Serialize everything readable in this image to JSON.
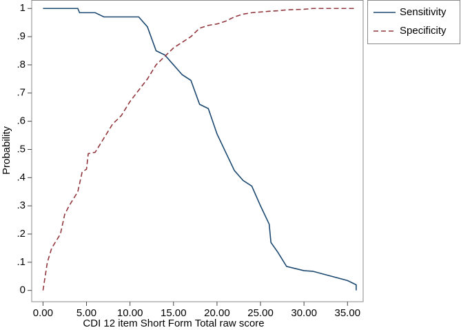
{
  "chart_data": {
    "type": "line",
    "xlabel": "CDI 12 item Short Form Total raw score",
    "ylabel": "Probability",
    "xlim": [
      -1.3,
      36.8
    ],
    "ylim": [
      -0.04,
      1.03
    ],
    "xticks": [
      {
        "value": 0,
        "label": "0.00"
      },
      {
        "value": 5,
        "label": "5.00"
      },
      {
        "value": 10,
        "label": "10.00"
      },
      {
        "value": 15,
        "label": "15.00"
      },
      {
        "value": 20,
        "label": "20.00"
      },
      {
        "value": 25,
        "label": "25.00"
      },
      {
        "value": 30,
        "label": "30.00"
      },
      {
        "value": 35,
        "label": "35.00"
      }
    ],
    "yticks": [
      0,
      {
        "value": 0.1,
        "label": ".1"
      },
      {
        "value": 0.2,
        "label": ".2"
      },
      {
        "value": 0.3,
        "label": ".3"
      },
      {
        "value": 0.4,
        "label": ".4"
      },
      {
        "value": 0.5,
        "label": ".5"
      },
      {
        "value": 0.6,
        "label": ".6"
      },
      {
        "value": 0.7,
        "label": ".7"
      },
      {
        "value": 0.8,
        "label": ".8"
      },
      {
        "value": 0.9,
        "label": ".9"
      },
      1
    ],
    "legend": "outside-top-right",
    "series": [
      {
        "name": "Sensitivity",
        "color": "#1a476f",
        "line_style": "solid",
        "x": [
          0,
          4,
          4.2,
          6,
          7,
          11,
          12,
          13,
          14,
          15,
          16,
          17,
          18,
          19,
          20,
          21,
          22,
          23,
          24,
          25,
          26,
          26.2,
          27,
          28,
          30,
          31,
          35,
          36,
          36
        ],
        "values": [
          1,
          1,
          0.985,
          0.985,
          0.97,
          0.97,
          0.935,
          0.85,
          0.835,
          0.8,
          0.765,
          0.745,
          0.66,
          0.645,
          0.555,
          0.49,
          0.425,
          0.39,
          0.37,
          0.3,
          0.235,
          0.17,
          0.135,
          0.085,
          0.07,
          0.068,
          0.035,
          0.02,
          0
        ]
      },
      {
        "name": "Specificity",
        "color": "#90353b",
        "line_style": "dashed",
        "x": [
          0,
          0.5,
          1,
          2,
          2.5,
          3,
          4,
          4.5,
          5,
          5.2,
          6,
          7,
          8,
          9,
          10,
          11,
          12,
          13,
          14,
          15,
          16,
          17,
          18,
          19,
          20,
          21,
          22,
          23,
          24,
          26,
          27,
          28,
          30,
          31,
          36
        ],
        "values": [
          0,
          0.1,
          0.15,
          0.2,
          0.27,
          0.3,
          0.35,
          0.42,
          0.43,
          0.485,
          0.49,
          0.54,
          0.59,
          0.62,
          0.67,
          0.71,
          0.75,
          0.8,
          0.83,
          0.86,
          0.88,
          0.9,
          0.93,
          0.94,
          0.945,
          0.955,
          0.97,
          0.98,
          0.985,
          0.99,
          0.992,
          0.995,
          0.997,
          1,
          1
        ]
      }
    ]
  }
}
